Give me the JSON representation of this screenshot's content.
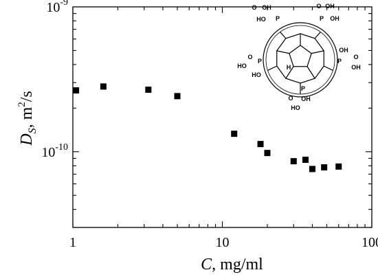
{
  "chart_data": {
    "type": "scatter",
    "xscale": "log",
    "yscale": "log",
    "xlim": [
      1,
      100
    ],
    "ylim": [
      3e-11,
      1e-09
    ],
    "xticks": [
      {
        "value": 1,
        "label": "1"
      },
      {
        "value": 10,
        "label": "10"
      },
      {
        "value": 100,
        "label": "100"
      }
    ],
    "yticks": [
      {
        "value": 1e-09,
        "base": "10",
        "exp": "-9"
      },
      {
        "value": 1e-10,
        "base": "10",
        "exp": "-10"
      }
    ],
    "xlabel": {
      "symbol": "C",
      "rest": ", mg/ml"
    },
    "ylabel": {
      "symbol": "D",
      "sub": "S",
      "rest": ", m",
      "sup": "2",
      "tail": "/s"
    },
    "grid": false,
    "marker": "square",
    "marker_color": "#000000",
    "points": [
      {
        "x": 1.05,
        "y": 2.65e-10
      },
      {
        "x": 1.6,
        "y": 2.82e-10
      },
      {
        "x": 3.2,
        "y": 2.68e-10
      },
      {
        "x": 5.0,
        "y": 2.42e-10
      },
      {
        "x": 12.0,
        "y": 1.33e-10
      },
      {
        "x": 18.0,
        "y": 1.13e-10
      },
      {
        "x": 20.0,
        "y": 9.8e-11
      },
      {
        "x": 30.0,
        "y": 8.6e-11
      },
      {
        "x": 36.0,
        "y": 8.8e-11
      },
      {
        "x": 40.0,
        "y": 7.6e-11
      },
      {
        "x": 48.0,
        "y": 7.8e-11
      },
      {
        "x": 60.0,
        "y": 7.9e-11
      }
    ],
    "inset": {
      "kind": "molecule-structure",
      "labels": {
        "p": "P",
        "oh": "OH",
        "ho": "HO",
        "o": "O",
        "h": "H"
      }
    }
  }
}
